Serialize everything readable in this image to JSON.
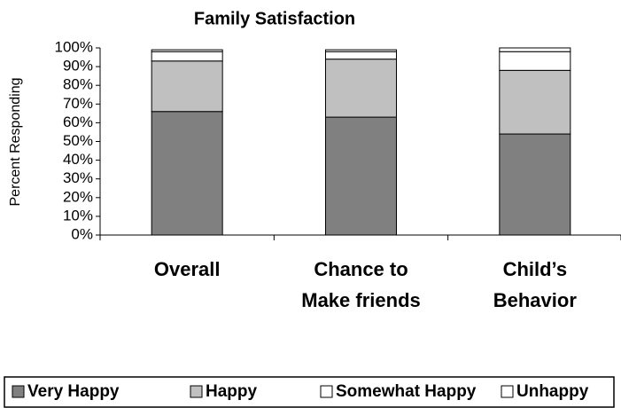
{
  "chart_data": {
    "type": "stacked_bar",
    "title": "Family Satisfaction",
    "y_label": "Percent Responding",
    "categories": [
      "Overall",
      "Chance to\nMake friends",
      "Child’s\nBehavior"
    ],
    "series": [
      {
        "name": "Very Happy",
        "color": "#808080",
        "values": [
          66,
          63,
          54
        ]
      },
      {
        "name": "Happy",
        "color": "#c0c0c0",
        "values": [
          27,
          31,
          34
        ]
      },
      {
        "name": "Somewhat Happy",
        "color": "#ffffff",
        "values": [
          5,
          4,
          10
        ]
      },
      {
        "name": "Unhappy",
        "color": "#ffffff",
        "values": [
          1,
          1,
          2
        ]
      }
    ],
    "ylim": [
      0,
      100
    ],
    "yticks": [
      {
        "value": 0,
        "label": "0%"
      },
      {
        "value": 10,
        "label": "10%"
      },
      {
        "value": 20,
        "label": "20%"
      },
      {
        "value": 30,
        "label": "30%"
      },
      {
        "value": 40,
        "label": "40%"
      },
      {
        "value": 50,
        "label": "50%"
      },
      {
        "value": 60,
        "label": "60%"
      },
      {
        "value": 70,
        "label": "70%"
      },
      {
        "value": 80,
        "label": "80%"
      },
      {
        "value": 90,
        "label": "90%"
      },
      {
        "value": 100,
        "label": "100%"
      }
    ],
    "legend": "bottom"
  }
}
